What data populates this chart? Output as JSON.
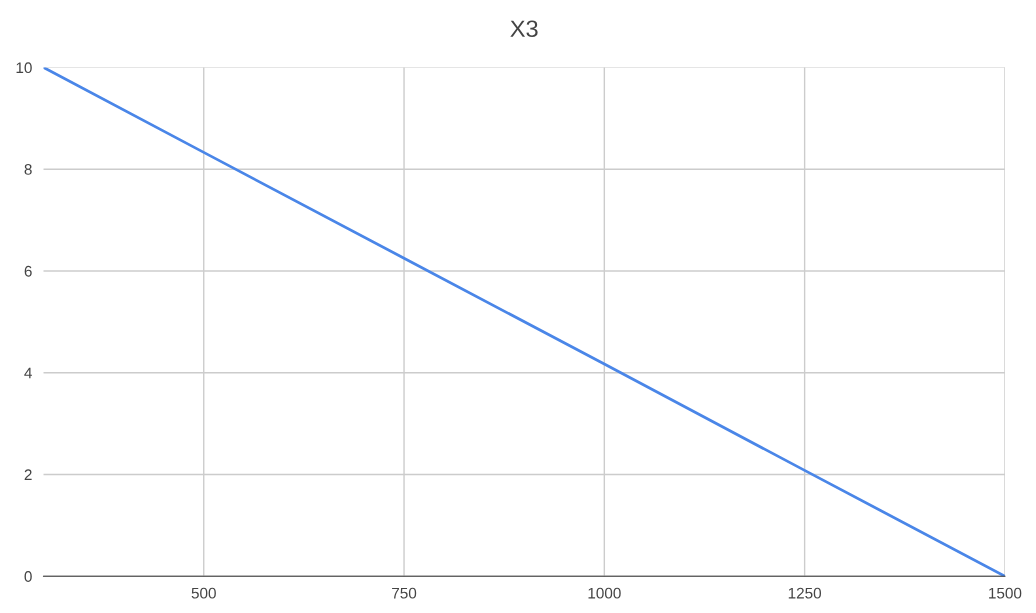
{
  "chart_data": {
    "type": "line",
    "title": "X3",
    "x": [
      300,
      500,
      750,
      1000,
      1250,
      1500
    ],
    "series": [
      {
        "color": "#4a86e8",
        "values": [
          10,
          8.33,
          6.25,
          4.17,
          2.08,
          0
        ]
      }
    ],
    "xlim": [
      300,
      1500
    ],
    "xticks": [
      500,
      750,
      1000,
      1250,
      1500
    ],
    "ylim": [
      0,
      10
    ],
    "yticks": [
      0,
      2,
      4,
      6,
      8,
      10
    ],
    "grid": true,
    "legend": false,
    "marker": "none",
    "line_style": "solid"
  }
}
